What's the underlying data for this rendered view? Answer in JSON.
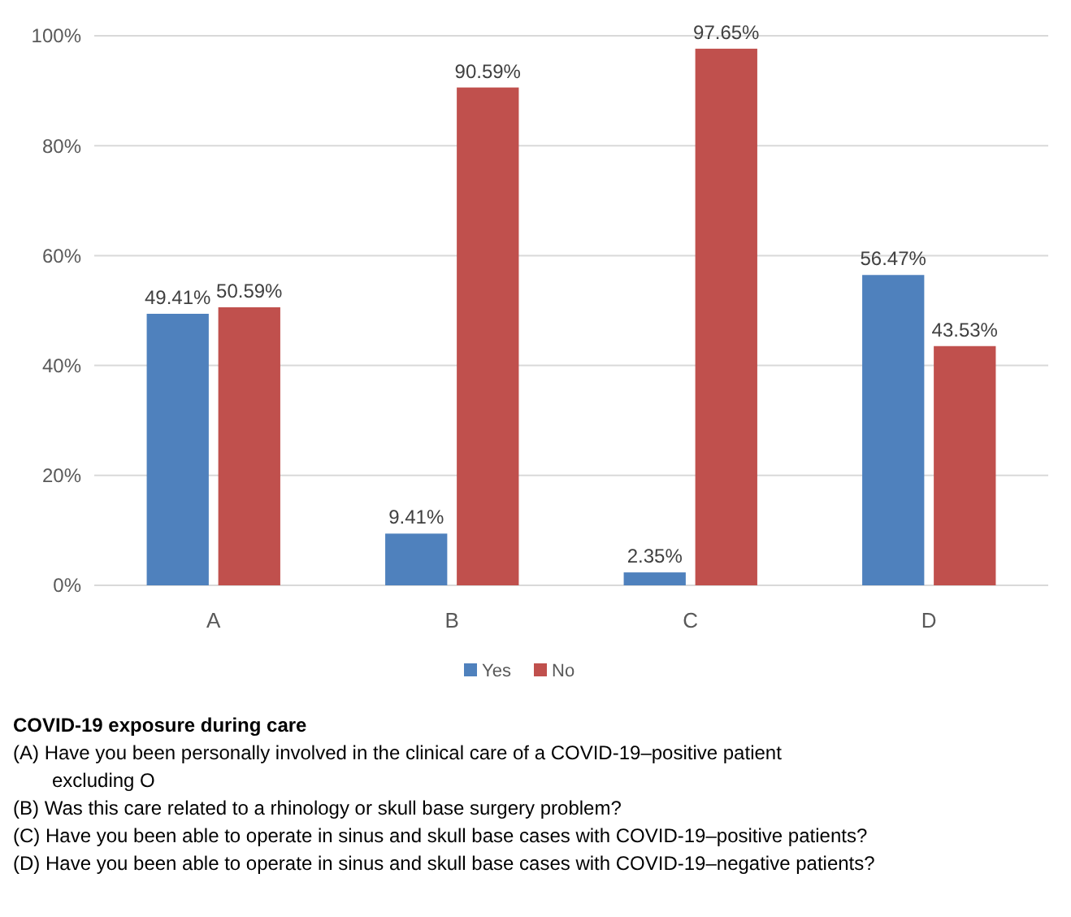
{
  "chart_data": {
    "type": "bar",
    "categories": [
      "A",
      "B",
      "C",
      "D"
    ],
    "series": [
      {
        "name": "Yes",
        "color": "#4f81bd",
        "values": [
          49.41,
          9.41,
          2.35,
          56.47
        ],
        "value_labels": [
          "49.41%",
          "9.41%",
          "2.35%",
          "56.47%"
        ]
      },
      {
        "name": "No",
        "color": "#c0504d",
        "values": [
          50.59,
          90.59,
          97.65,
          43.53
        ],
        "value_labels": [
          "50.59%",
          "90.59%",
          "97.65%",
          "43.53%"
        ]
      }
    ],
    "ylim": [
      0,
      100
    ],
    "yticks": [
      {
        "value": 0,
        "label": "0%"
      },
      {
        "value": 20,
        "label": "20%"
      },
      {
        "value": 40,
        "label": "40%"
      },
      {
        "value": 60,
        "label": "60%"
      },
      {
        "value": 80,
        "label": "80%"
      },
      {
        "value": 100,
        "label": "100%"
      }
    ],
    "grid": "y",
    "legend": "bottom",
    "annotations": [
      "COVID-19 exposure during care",
      "(A) Have you been personally involved in the clinical care of a COVID-19–positive patient excluding O",
      "(B) Was this care related to a rhinology or skull base surgery problem?",
      "(C) Have you been able to operate in sinus and skull base cases with COVID-19–positive patients?",
      "(D) Have you been able to operate in sinus and skull base cases with COVID-19–negative patients?"
    ]
  }
}
